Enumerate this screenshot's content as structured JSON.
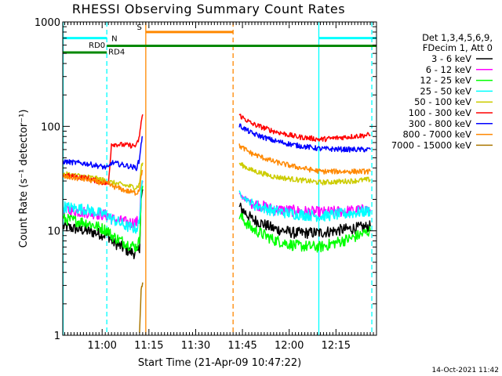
{
  "title": "RHESSI Observing Summary Count Rates",
  "timestamp": "14-Oct-2021 11:42",
  "chart_data": {
    "type": "line",
    "title": "RHESSI Observing Summary Count Rates",
    "xlabel": "Start Time (21-Apr-09 10:47:22)",
    "ylabel": "Count Rate (s⁻¹ detector⁻¹)",
    "yscale": "log",
    "xlim": [
      "10:47:22",
      "12:28:00"
    ],
    "ylim": [
      1,
      1000
    ],
    "x_ticks": [
      "11:00",
      "11:15",
      "11:30",
      "11:45",
      "12:00",
      "12:15"
    ],
    "y_ticks": [
      "1",
      "10",
      "100",
      "1000"
    ],
    "grid": false,
    "legend_position": "right",
    "legend_header": [
      "Det 1,3,4,5,6,9,",
      "FDecim 1, Att 0"
    ],
    "series": [
      {
        "name": "3 - 6 keV",
        "color": "#000000",
        "segments": [
          [
            [
              "10:47:30",
              11
            ],
            [
              "10:55:00",
              10
            ],
            [
              "11:02:00",
              9
            ],
            [
              "11:03:00",
              8
            ],
            [
              "11:08:00",
              6.5
            ],
            [
              "11:11:00",
              6
            ],
            [
              "11:12:00",
              7
            ],
            [
              "11:12:30",
              20
            ],
            [
              "11:13:00",
              25
            ]
          ],
          [
            [
              "11:44:00",
              17
            ],
            [
              "11:48:00",
              13
            ],
            [
              "11:55:00",
              10.5
            ],
            [
              "12:02:00",
              9.5
            ],
            [
              "12:10:00",
              9.6
            ],
            [
              "12:20:00",
              10.5
            ],
            [
              "12:26:00",
              11
            ]
          ]
        ]
      },
      {
        "name": "6 - 12 keV",
        "color": "#ff00ff",
        "segments": [
          [
            [
              "10:47:30",
              16
            ],
            [
              "10:55:00",
              15
            ],
            [
              "11:02:00",
              14
            ],
            [
              "11:03:00",
              13
            ],
            [
              "11:08:00",
              12
            ],
            [
              "11:11:00",
              12
            ],
            [
              "11:12:00",
              13
            ],
            [
              "11:12:30",
              25
            ],
            [
              "11:13:00",
              30
            ]
          ],
          [
            [
              "11:44:00",
              22
            ],
            [
              "11:48:00",
              18.5
            ],
            [
              "11:55:00",
              16
            ],
            [
              "12:02:00",
              15.5
            ],
            [
              "12:10:00",
              15
            ],
            [
              "12:20:00",
              15.5
            ],
            [
              "12:26:00",
              16
            ]
          ]
        ]
      },
      {
        "name": "12 - 25 keV",
        "color": "#00ff00",
        "segments": [
          [
            [
              "10:47:30",
              13
            ],
            [
              "10:55:00",
              12
            ],
            [
              "11:02:00",
              10
            ],
            [
              "11:03:00",
              9
            ],
            [
              "11:08:00",
              7.5
            ],
            [
              "11:11:00",
              7
            ],
            [
              "11:12:00",
              8
            ],
            [
              "11:12:30",
              22
            ],
            [
              "11:13:00",
              27
            ]
          ],
          [
            [
              "11:44:00",
              14
            ],
            [
              "11:48:00",
              10.5
            ],
            [
              "11:55:00",
              8.2
            ],
            [
              "12:02:00",
              7.2
            ],
            [
              "12:10:00",
              7
            ],
            [
              "12:20:00",
              8.5
            ],
            [
              "12:26:00",
              10
            ]
          ]
        ]
      },
      {
        "name": "25 - 50 keV",
        "color": "#00ffff",
        "segments": [
          [
            [
              "10:47:30",
              17
            ],
            [
              "10:55:00",
              16
            ],
            [
              "11:02:00",
              14
            ],
            [
              "11:03:00",
              13
            ],
            [
              "11:08:00",
              11
            ],
            [
              "11:11:00",
              10.5
            ],
            [
              "11:12:00",
              12
            ],
            [
              "11:12:30",
              26
            ],
            [
              "11:13:00",
              30
            ]
          ],
          [
            [
              "11:44:00",
              23
            ],
            [
              "11:48:00",
              18
            ],
            [
              "11:55:00",
              15.5
            ],
            [
              "12:02:00",
              14.5
            ],
            [
              "12:10:00",
              13.8
            ],
            [
              "12:20:00",
              14.8
            ],
            [
              "12:26:00",
              15.5
            ]
          ]
        ]
      },
      {
        "name": "50 - 100 keV",
        "color": "#cccc00",
        "segments": [
          [
            [
              "10:47:30",
              35
            ],
            [
              "10:55:00",
              33
            ],
            [
              "11:02:00",
              30
            ],
            [
              "11:03:00",
              29
            ],
            [
              "11:08:00",
              27
            ],
            [
              "11:11:00",
              26
            ],
            [
              "11:12:00",
              28
            ],
            [
              "11:12:30",
              40
            ],
            [
              "11:13:00",
              45
            ]
          ],
          [
            [
              "11:44:00",
              44
            ],
            [
              "11:48:00",
              38
            ],
            [
              "11:55:00",
              33
            ],
            [
              "12:02:00",
              31
            ],
            [
              "12:10:00",
              29
            ],
            [
              "12:20:00",
              30
            ],
            [
              "12:26:00",
              31
            ]
          ]
        ]
      },
      {
        "name": "100 - 300 keV",
        "color": "#ff0000",
        "segments": [
          [
            [
              "10:47:30",
              34
            ],
            [
              "10:55:00",
              32
            ],
            [
              "11:02:00",
              28
            ],
            [
              "11:03:00",
              68
            ],
            [
              "11:08:00",
              66
            ],
            [
              "11:11:00",
              65
            ],
            [
              "11:12:00",
              80
            ],
            [
              "11:12:30",
              110
            ],
            [
              "11:13:00",
              130
            ]
          ],
          [
            [
              "11:44:00",
              128
            ],
            [
              "11:48:00",
              106
            ],
            [
              "11:55:00",
              90
            ],
            [
              "12:02:00",
              80
            ],
            [
              "12:10:00",
              75
            ],
            [
              "12:20:00",
              80
            ],
            [
              "12:26:00",
              83
            ]
          ]
        ]
      },
      {
        "name": "300 - 800 keV",
        "color": "#0000ff",
        "segments": [
          [
            [
              "10:47:30",
              46
            ],
            [
              "10:55:00",
              44
            ],
            [
              "11:02:00",
              40
            ],
            [
              "11:03:00",
              45
            ],
            [
              "11:08:00",
              42
            ],
            [
              "11:11:00",
              40
            ],
            [
              "11:12:00",
              48
            ],
            [
              "11:12:30",
              70
            ],
            [
              "11:13:00",
              80
            ]
          ],
          [
            [
              "11:44:00",
              102
            ],
            [
              "11:48:00",
              86
            ],
            [
              "11:55:00",
              73
            ],
            [
              "12:02:00",
              66
            ],
            [
              "12:10:00",
              61
            ],
            [
              "12:20:00",
              60
            ],
            [
              "12:26:00",
              60
            ]
          ]
        ]
      },
      {
        "name": "800 - 7000 keV",
        "color": "#ff8800",
        "segments": [
          [
            [
              "10:47:30",
              33
            ],
            [
              "10:55:00",
              31
            ],
            [
              "11:02:00",
              28
            ],
            [
              "11:03:00",
              27
            ],
            [
              "11:08:00",
              24
            ],
            [
              "11:11:00",
              23
            ],
            [
              "11:12:00",
              25
            ],
            [
              "11:12:30",
              35
            ],
            [
              "11:13:00",
              38
            ]
          ],
          [
            [
              "11:44:00",
              65
            ],
            [
              "11:48:00",
              55
            ],
            [
              "11:55:00",
              46
            ],
            [
              "12:02:00",
              41
            ],
            [
              "12:10:00",
              37
            ],
            [
              "12:20:00",
              37
            ],
            [
              "12:26:00",
              37
            ]
          ]
        ]
      },
      {
        "name": "7000 - 15000 keV",
        "color": "#aa7700",
        "segments": [
          [
            [
              "11:12:00",
              1
            ],
            [
              "11:12:30",
              2.8
            ],
            [
              "11:13:00",
              3.2
            ]
          ]
        ]
      }
    ],
    "annotations": [
      {
        "label": "N",
        "color": "#00ffff",
        "y": 700,
        "x": [
          "10:47:22",
          "11:01:30"
        ]
      },
      {
        "label": "",
        "color": "#00ffff",
        "y": 700,
        "x": [
          "12:09:30",
          "12:28:00"
        ]
      },
      {
        "label": "RD0",
        "color": "#008800",
        "y": 510,
        "x": [
          "10:47:22",
          "11:01:30"
        ]
      },
      {
        "label": "RD4",
        "color": "#008800",
        "y": 590,
        "x": [
          "11:01:30",
          "12:28:00"
        ]
      },
      {
        "label": "S",
        "color": "#ff8800",
        "y": 800,
        "x": [
          "11:14:00",
          "11:42:00"
        ]
      }
    ],
    "vertical_lines": [
      {
        "color": "#00ffff",
        "style": "solid",
        "x": "10:47:30"
      },
      {
        "color": "#00ffff",
        "style": "dashed",
        "x": "11:01:30"
      },
      {
        "color": "#ff8800",
        "style": "solid",
        "x": "11:14:00"
      },
      {
        "color": "#ff8800",
        "style": "dashed",
        "x": "11:42:00"
      },
      {
        "color": "#00ffff",
        "style": "solid",
        "x": "12:09:30"
      },
      {
        "color": "#00ffff",
        "style": "dashed",
        "x": "12:26:30"
      }
    ]
  }
}
